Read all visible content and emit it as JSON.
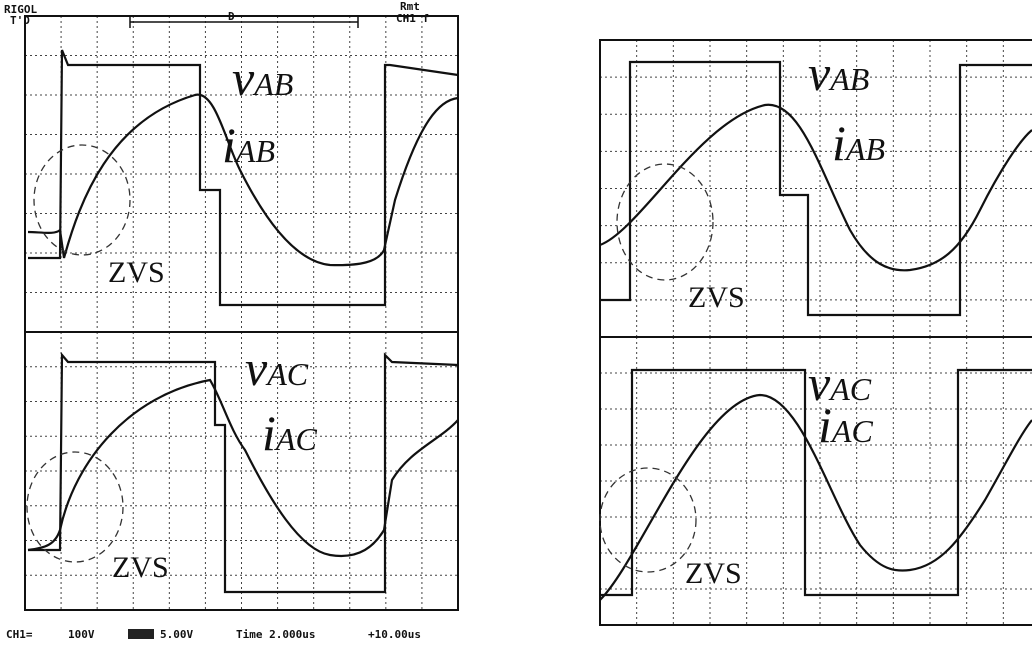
{
  "left_scope": {
    "header": {
      "brand": "RIGOL",
      "status": "T'D",
      "trigger_mark": "D",
      "mode": "Rmt",
      "trigger_source": "CH1 f"
    },
    "top": {
      "voltage": {
        "letter": "v",
        "sub": "AB"
      },
      "current": {
        "letter": "i",
        "sub": "AB"
      },
      "annotation": "ZVS"
    },
    "bottom": {
      "voltage": {
        "letter": "v",
        "sub": "AC"
      },
      "current": {
        "letter": "i",
        "sub": "AC"
      },
      "annotation": "ZVS"
    },
    "footer": {
      "ch1": "CH1=",
      "ch1_scale": "100V",
      "ch2_scale": "5.00V",
      "time": "Time 2.000us",
      "offset": "+10.00us"
    }
  },
  "right_scope": {
    "top": {
      "voltage": {
        "letter": "v",
        "sub": "AB"
      },
      "current": {
        "letter": "i",
        "sub": "AB"
      },
      "annotation": "ZVS"
    },
    "bottom": {
      "voltage": {
        "letter": "v",
        "sub": "AC"
      },
      "current": {
        "letter": "i",
        "sub": "AC"
      },
      "annotation": "ZVS"
    }
  }
}
